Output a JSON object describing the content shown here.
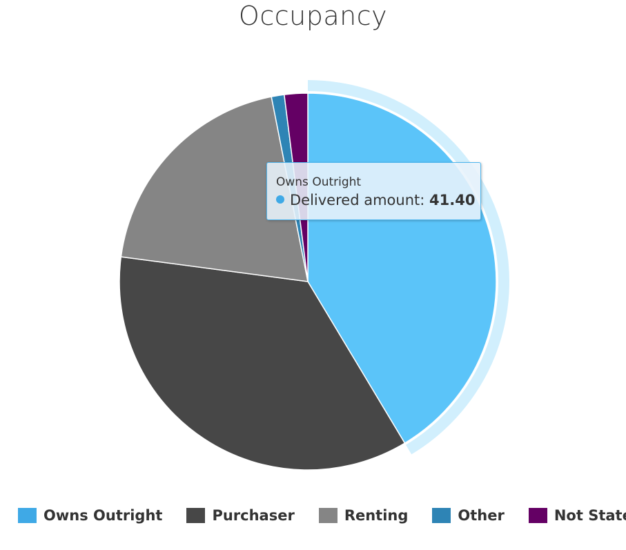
{
  "chart_data": {
    "type": "pie",
    "title": "Occupancy",
    "series_name": "Delivered amount",
    "slices": [
      {
        "label": "Owns Outright",
        "value": 41.4,
        "color": "#5bc4f9",
        "legend_color": "#3fa9e6"
      },
      {
        "label": "Purchaser",
        "value": 35.7,
        "color": "#474747",
        "legend_color": "#474747"
      },
      {
        "label": "Renting",
        "value": 19.8,
        "color": "#858585",
        "legend_color": "#858585"
      },
      {
        "label": "Other",
        "value": 1.1,
        "color": "#2e84b5",
        "legend_color": "#2e84b5"
      },
      {
        "label": "Not Stated",
        "value": 2.0,
        "color": "#640064",
        "legend_color": "#640064"
      }
    ],
    "highlighted_slice": "Owns Outright",
    "legend_position": "bottom"
  },
  "tooltip": {
    "title": "Owns Outright",
    "series_label": "Delivered amount:",
    "value": "41.40",
    "dot_color": "#3fa9e6"
  }
}
